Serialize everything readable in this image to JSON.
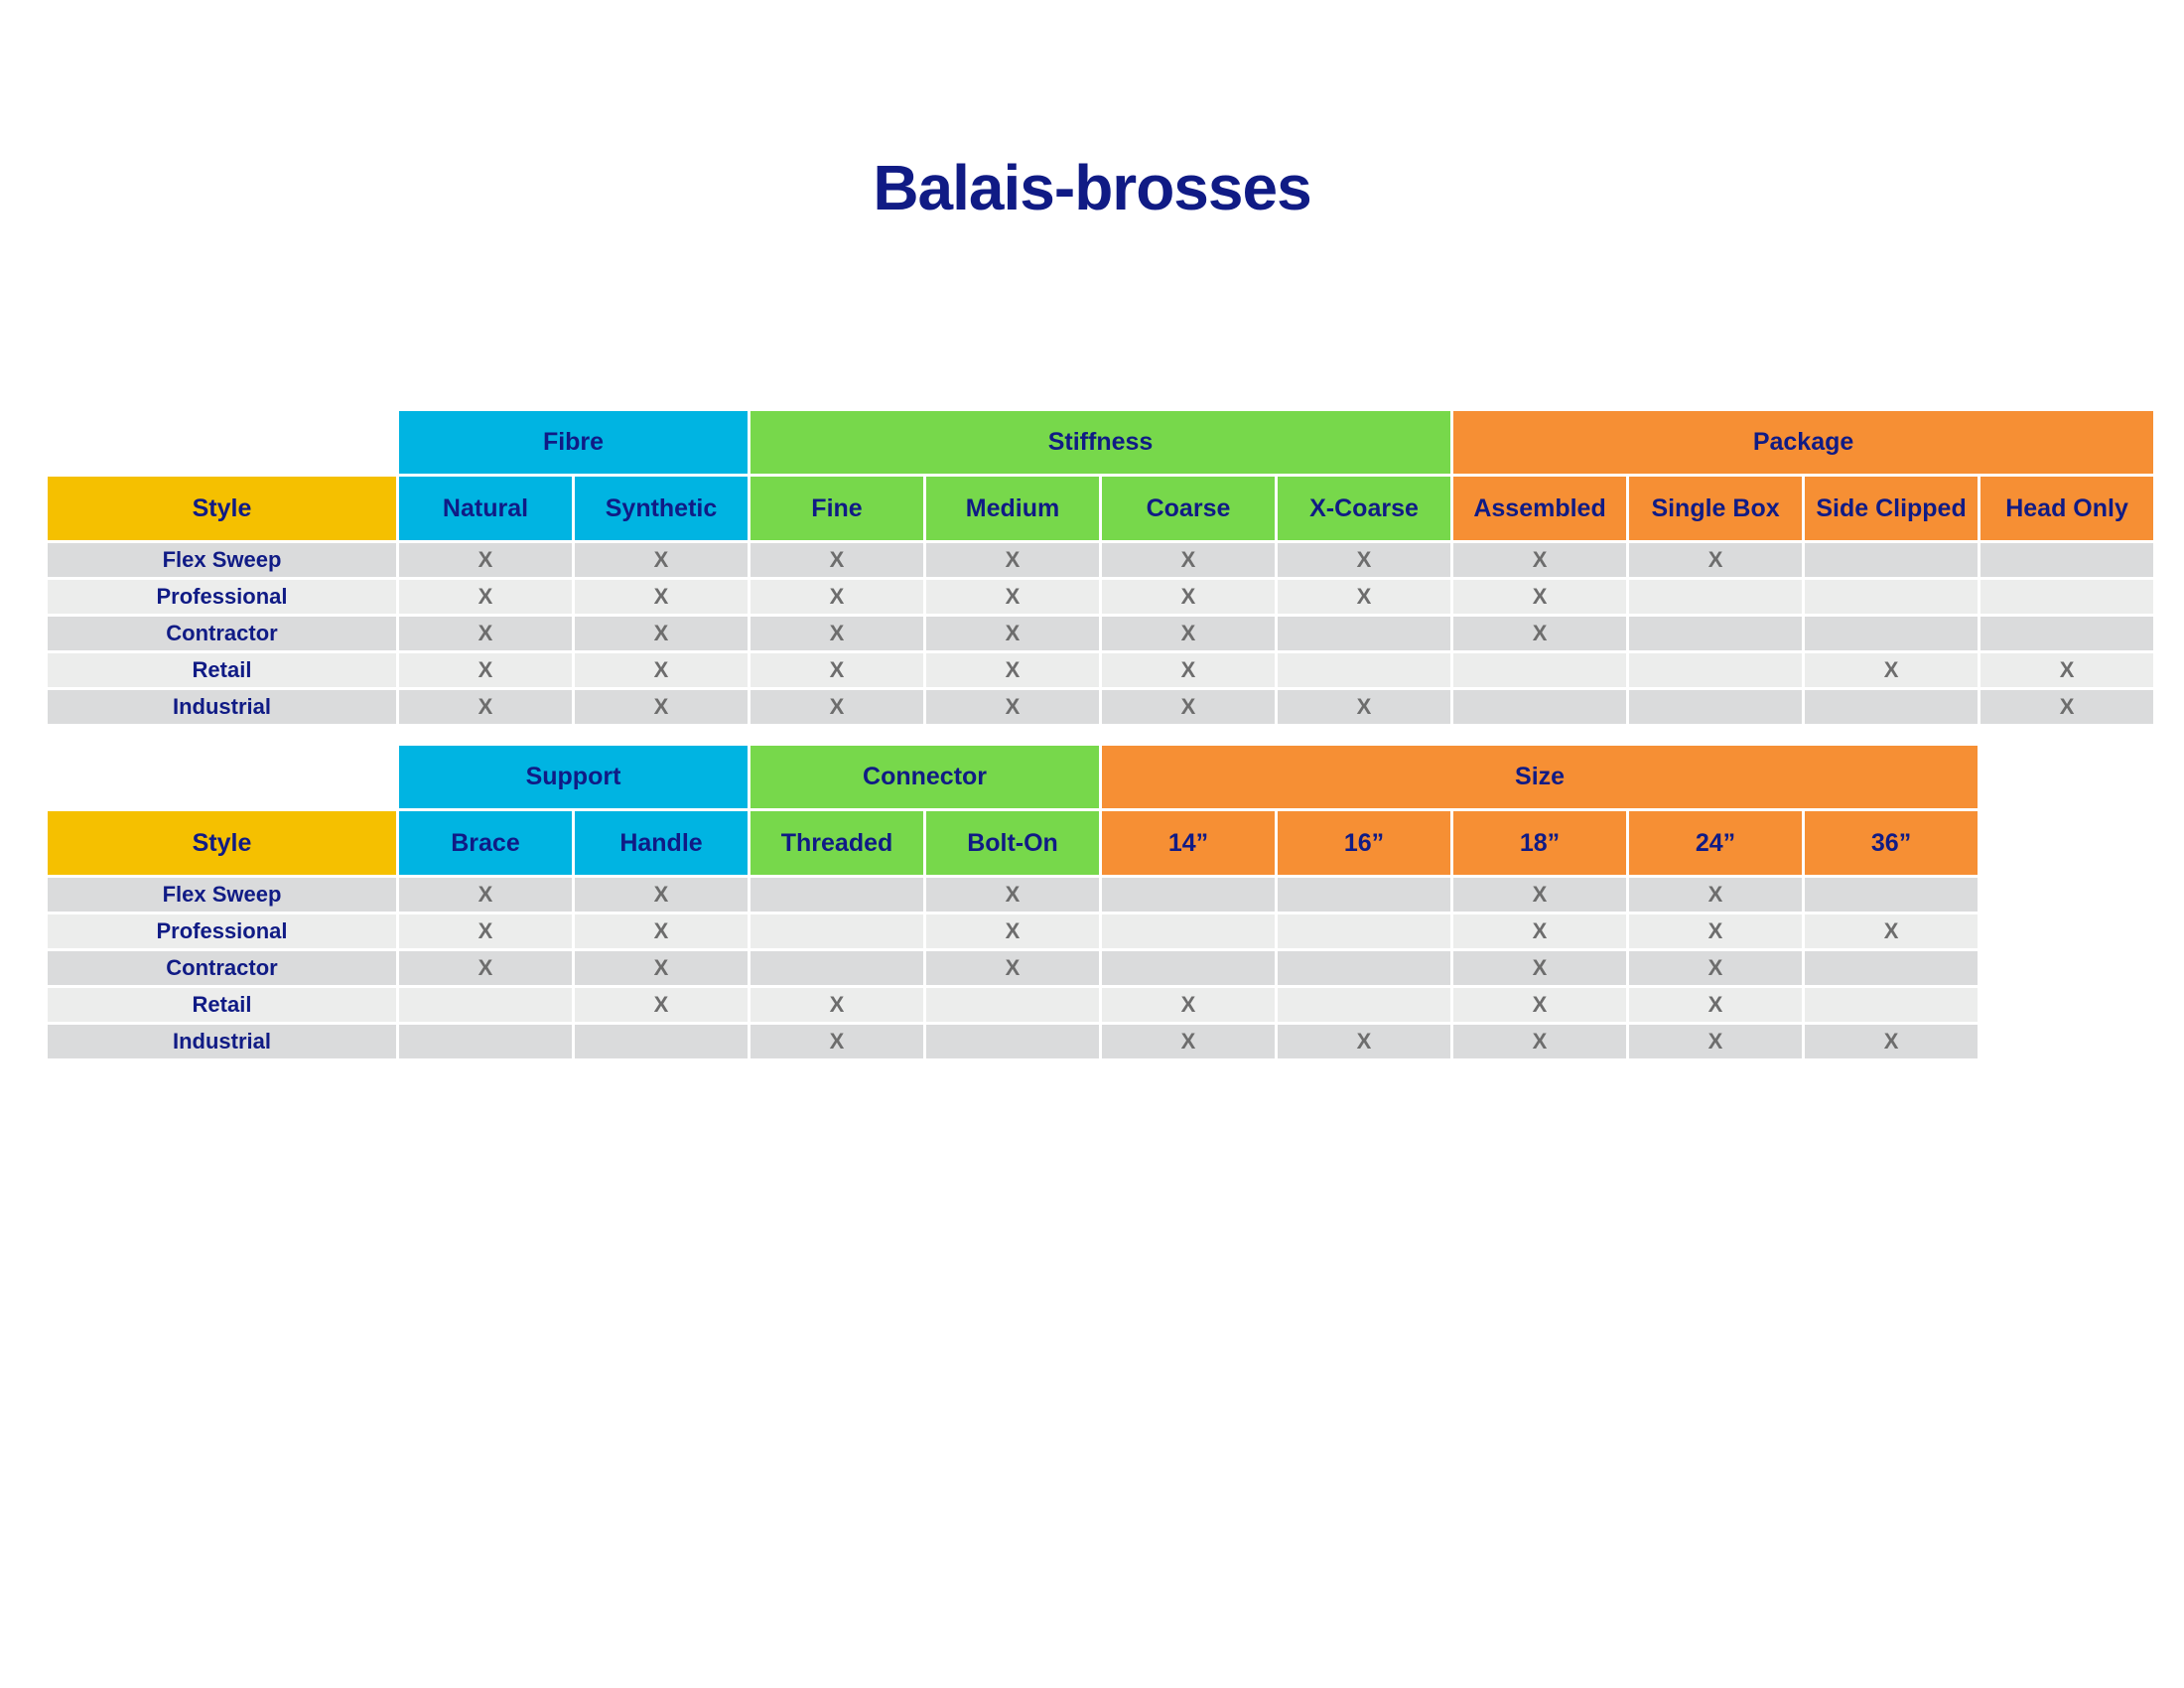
{
  "title": "Balais-brosses",
  "colors": {
    "title": "#101b85",
    "blue": "#00b4e2",
    "green": "#77d84b",
    "orange": "#f68f34",
    "gold": "#f5c000",
    "row_dark": "#dadbdc",
    "row_light": "#ecedec",
    "mark": "#6d6d6d"
  },
  "table1": {
    "groups": [
      {
        "label": "Fibre",
        "color": "blue",
        "span": 2
      },
      {
        "label": "Stiffness",
        "color": "green",
        "span": 4
      },
      {
        "label": "Package",
        "color": "orange",
        "span": 4
      }
    ],
    "style_header": "Style",
    "columns": [
      {
        "label": "Natural",
        "color": "blue"
      },
      {
        "label": "Synthetic",
        "color": "blue"
      },
      {
        "label": "Fine",
        "color": "green"
      },
      {
        "label": "Medium",
        "color": "green"
      },
      {
        "label": "Coarse",
        "color": "green"
      },
      {
        "label": "X-Coarse",
        "color": "green"
      },
      {
        "label": "Assembled",
        "color": "orange"
      },
      {
        "label": "Single Box",
        "color": "orange"
      },
      {
        "label": "Side Clipped",
        "color": "orange"
      },
      {
        "label": "Head Only",
        "color": "orange"
      }
    ],
    "rows": [
      {
        "style": "Flex Sweep",
        "cells": [
          "X",
          "X",
          "X",
          "X",
          "X",
          "X",
          "X",
          "X",
          "",
          ""
        ]
      },
      {
        "style": "Professional",
        "cells": [
          "X",
          "X",
          "X",
          "X",
          "X",
          "X",
          "X",
          "",
          "",
          ""
        ]
      },
      {
        "style": "Contractor",
        "cells": [
          "X",
          "X",
          "X",
          "X",
          "X",
          "",
          "X",
          "",
          "",
          ""
        ]
      },
      {
        "style": "Retail",
        "cells": [
          "X",
          "X",
          "X",
          "X",
          "X",
          "",
          "",
          "",
          "X",
          "X"
        ]
      },
      {
        "style": "Industrial",
        "cells": [
          "X",
          "X",
          "X",
          "X",
          "X",
          "X",
          "",
          "",
          "",
          "X"
        ]
      }
    ]
  },
  "table2": {
    "groups": [
      {
        "label": "Support",
        "color": "blue",
        "span": 2
      },
      {
        "label": "Connector",
        "color": "green",
        "span": 2
      },
      {
        "label": "Size",
        "color": "orange",
        "span": 5
      }
    ],
    "style_header": "Style",
    "columns": [
      {
        "label": "Brace",
        "color": "blue"
      },
      {
        "label": "Handle",
        "color": "blue"
      },
      {
        "label": "Threaded",
        "color": "green"
      },
      {
        "label": "Bolt-On",
        "color": "green"
      },
      {
        "label": "14”",
        "color": "orange"
      },
      {
        "label": "16”",
        "color": "orange"
      },
      {
        "label": "18”",
        "color": "orange"
      },
      {
        "label": "24”",
        "color": "orange"
      },
      {
        "label": "36”",
        "color": "orange"
      }
    ],
    "rows": [
      {
        "style": "Flex Sweep",
        "cells": [
          "X",
          "X",
          "",
          "X",
          "",
          "",
          "X",
          "X",
          ""
        ]
      },
      {
        "style": "Professional",
        "cells": [
          "X",
          "X",
          "",
          "X",
          "",
          "",
          "X",
          "X",
          "X"
        ]
      },
      {
        "style": "Contractor",
        "cells": [
          "X",
          "X",
          "",
          "X",
          "",
          "",
          "X",
          "X",
          ""
        ]
      },
      {
        "style": "Retail",
        "cells": [
          "",
          "X",
          "X",
          "",
          "X",
          "",
          "X",
          "X",
          ""
        ]
      },
      {
        "style": "Industrial",
        "cells": [
          "",
          "",
          "X",
          "",
          "X",
          "X",
          "X",
          "X",
          "X"
        ]
      }
    ]
  }
}
